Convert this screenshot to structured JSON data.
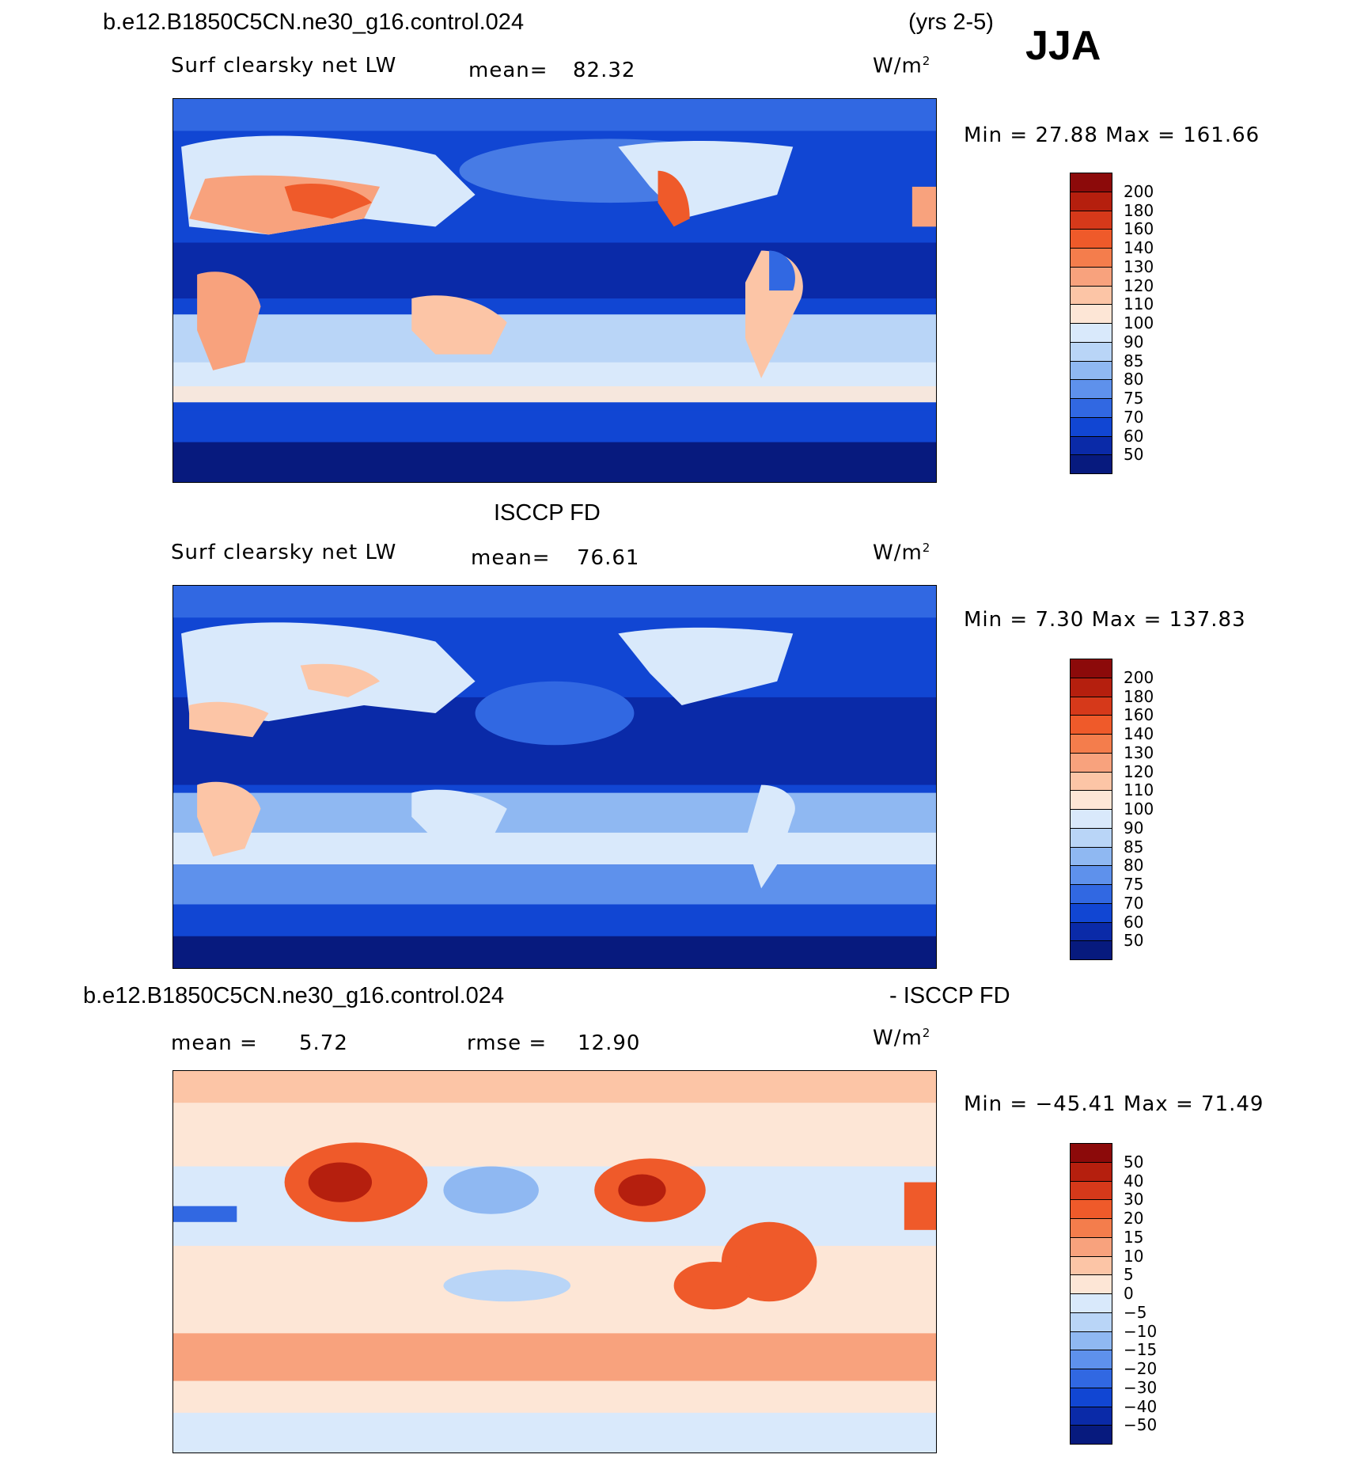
{
  "header": {
    "case_name": "b.e12.B1850C5CN.ne30_g16.control.024",
    "years": "(yrs 2-5)",
    "season": "JJA"
  },
  "colors": {
    "ocean_deep": "#0f4fd6",
    "ocean_dark": "#08208f",
    "land_light": "#d6e8fb",
    "warm": "#e8542a",
    "warm_light": "#fcd0b8"
  },
  "panels": [
    {
      "id": "model",
      "title": "",
      "variable": "Surf clearsky net LW",
      "stat_label": "mean=",
      "stat_value": "82.32",
      "units": "W/m",
      "units_exp": "2",
      "minmax": "Min =   27.88 Max =  161.66"
    },
    {
      "id": "obs",
      "title": "ISCCP FD",
      "variable": "Surf clearsky net LW",
      "stat_label": "mean=",
      "stat_value": "76.61",
      "units": "W/m",
      "units_exp": "2",
      "minmax": "Min =    7.30 Max =  137.83"
    },
    {
      "id": "diff",
      "title_left": "b.e12.B1850C5CN.ne30_g16.control.024",
      "title_right": "- ISCCP FD",
      "stat_label": "mean =",
      "stat_value": "5.72",
      "stat2_label": "rmse =",
      "stat2_value": "12.90",
      "units": "W/m",
      "units_exp": "2",
      "minmax": "Min = −45.41 Max =   71.49"
    }
  ],
  "chart_data": [
    {
      "type": "heatmap",
      "title": "Surf clearsky net LW (model, JJA)",
      "mean": 82.32,
      "min": 27.88,
      "max": 161.66,
      "units": "W/m2",
      "colorbar_levels": [
        "200",
        "180",
        "160",
        "140",
        "130",
        "120",
        "110",
        "100",
        "90",
        "85",
        "80",
        "75",
        "70",
        "60",
        "50"
      ],
      "colorbar_colors": [
        "#8c0a0a",
        "#b51f0e",
        "#d6391a",
        "#ef5a2a",
        "#f47d4c",
        "#f8a27d",
        "#fcc5a6",
        "#fde6d6",
        "#d9e9fb",
        "#b9d5f7",
        "#8fb8f2",
        "#5e91ec",
        "#3168e2",
        "#1146d3",
        "#0a2aa8",
        "#071a7e"
      ]
    },
    {
      "type": "heatmap",
      "title": "Surf clearsky net LW (ISCCP FD, JJA)",
      "mean": 76.61,
      "min": 7.3,
      "max": 137.83,
      "units": "W/m2",
      "colorbar_levels": [
        "200",
        "180",
        "160",
        "140",
        "130",
        "120",
        "110",
        "100",
        "90",
        "85",
        "80",
        "75",
        "70",
        "60",
        "50"
      ],
      "colorbar_colors": [
        "#8c0a0a",
        "#b51f0e",
        "#d6391a",
        "#ef5a2a",
        "#f47d4c",
        "#f8a27d",
        "#fcc5a6",
        "#fde6d6",
        "#d9e9fb",
        "#b9d5f7",
        "#8fb8f2",
        "#5e91ec",
        "#3168e2",
        "#1146d3",
        "#0a2aa8",
        "#071a7e"
      ]
    },
    {
      "type": "heatmap",
      "title": "Model - ISCCP FD (JJA)",
      "mean": 5.72,
      "rmse": 12.9,
      "min": -45.41,
      "max": 71.49,
      "units": "W/m2",
      "colorbar_levels": [
        "50",
        "40",
        "30",
        "20",
        "15",
        "10",
        "5",
        "0",
        "−5",
        "−10",
        "−15",
        "−20",
        "−30",
        "−40",
        "−50"
      ],
      "colorbar_colors": [
        "#8c0a0a",
        "#b51f0e",
        "#d6391a",
        "#ef5a2a",
        "#f47d4c",
        "#f8a27d",
        "#fcc5a6",
        "#fde6d6",
        "#d9e9fb",
        "#b9d5f7",
        "#8fb8f2",
        "#5e91ec",
        "#3168e2",
        "#1146d3",
        "#0a2aa8",
        "#071a7e"
      ]
    }
  ]
}
